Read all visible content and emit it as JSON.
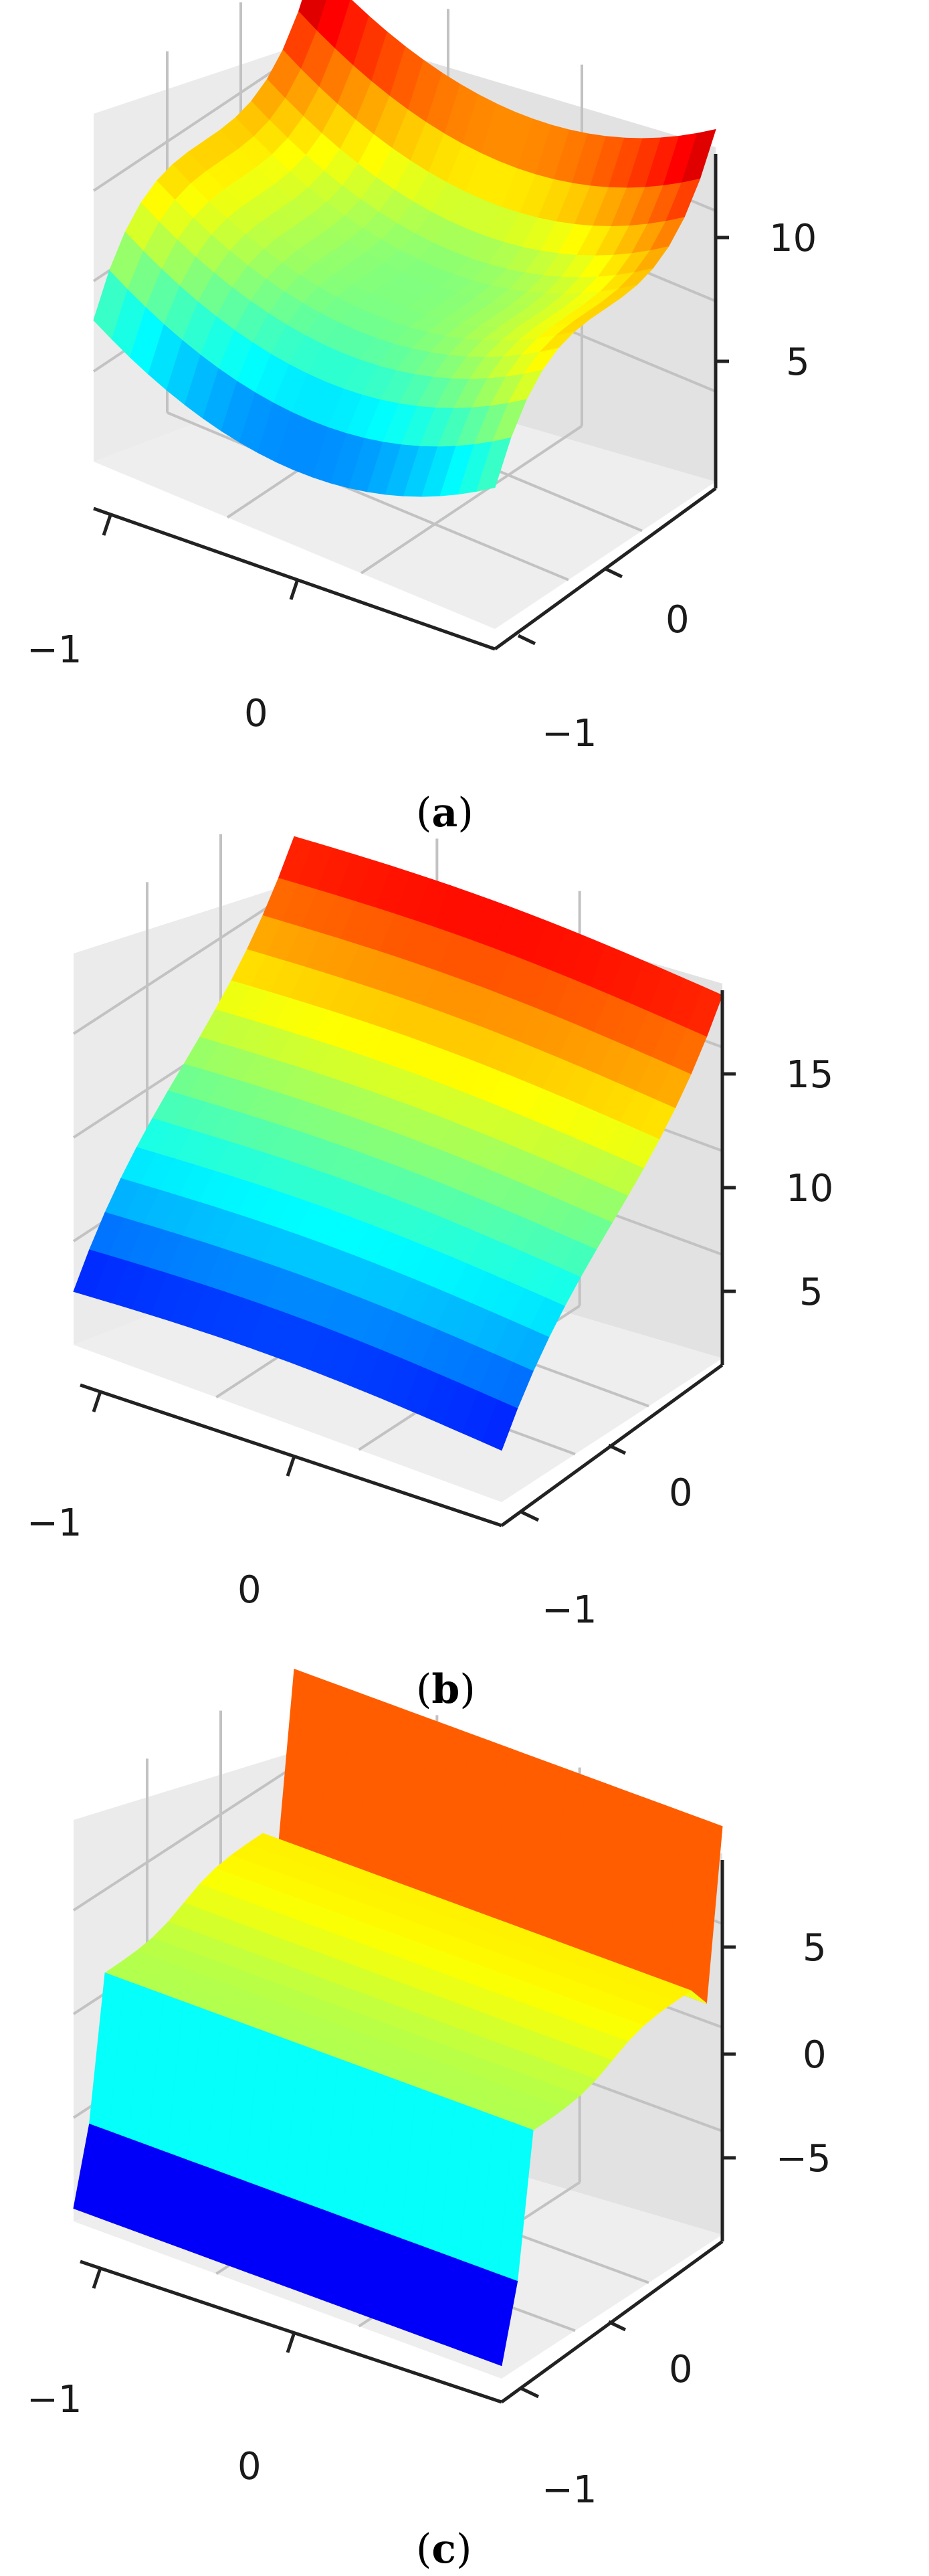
{
  "chart_data": [
    {
      "type": "surface3d",
      "panel": "a",
      "caption_paren_open": "(",
      "caption_letter": "a",
      "caption_paren_close": ")",
      "colormap": "jet",
      "surface_shape": "quadratic-cubic bowl",
      "x_ticks": [
        "−1",
        "0"
      ],
      "y_ticks": [
        "0",
        "−1"
      ],
      "z_ticks": [
        "5",
        "10"
      ],
      "z_range": [
        1,
        13
      ]
    },
    {
      "type": "surface3d",
      "panel": "b",
      "caption_paren_open": "(",
      "caption_letter": "b",
      "caption_paren_close": ")",
      "colormap": "jet",
      "surface_shape": "cubic s-curve",
      "x_ticks": [
        "−1",
        "0"
      ],
      "y_ticks": [
        "0",
        "−1"
      ],
      "z_ticks": [
        "5",
        "10",
        "15"
      ],
      "z_range": [
        2,
        18
      ]
    },
    {
      "type": "surface3d",
      "panel": "c",
      "caption_paren_open": "(",
      "caption_letter": "c",
      "caption_paren_close": ")",
      "colormap": "jet",
      "surface_shape": "steep cubic step",
      "x_ticks": [
        "−1",
        "0"
      ],
      "y_ticks": [
        "0",
        "−1"
      ],
      "z_ticks": [
        "5",
        "0",
        "−5"
      ],
      "z_range": [
        -8,
        8
      ]
    }
  ],
  "colors": {
    "pane": "#ebebeb",
    "pane_side": "#e0e0e0",
    "grid": "#c2c2c2",
    "axis": "#222222",
    "text": "#1a1a1a"
  }
}
